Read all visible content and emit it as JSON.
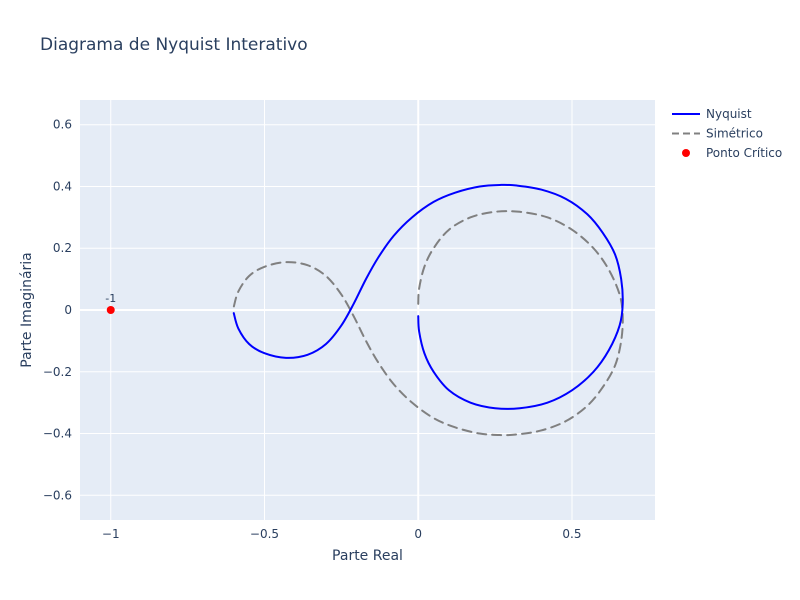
{
  "chart_data": {
    "type": "line",
    "title": "Diagrama de Nyquist Interativo",
    "xlabel": "Parte Real",
    "ylabel": "Parte Imaginária",
    "xlim": [
      -1.1,
      0.77
    ],
    "ylim": [
      -0.68,
      0.68
    ],
    "x_ticks": [
      -1,
      -0.5,
      0,
      0.5
    ],
    "x_tick_labels": [
      "−1",
      "−0.5",
      "0",
      "0.5"
    ],
    "y_ticks": [
      -0.6,
      -0.4,
      -0.2,
      0,
      0.2,
      0.4,
      0.6
    ],
    "y_tick_labels": [
      "−0.6",
      "−0.4",
      "−0.2",
      "0",
      "0.2",
      "0.4",
      "0.6"
    ],
    "grid": true,
    "legend_position": "top-right",
    "series": [
      {
        "name": "Nyquist",
        "style": "solid",
        "color": "#0000ff",
        "points": [
          [
            0.0,
            -0.02
          ],
          [
            0.003,
            -0.07
          ],
          [
            0.02,
            -0.14
          ],
          [
            0.05,
            -0.2
          ],
          [
            0.1,
            -0.26
          ],
          [
            0.17,
            -0.3
          ],
          [
            0.25,
            -0.318
          ],
          [
            0.33,
            -0.318
          ],
          [
            0.42,
            -0.3
          ],
          [
            0.5,
            -0.26
          ],
          [
            0.57,
            -0.2
          ],
          [
            0.62,
            -0.13
          ],
          [
            0.655,
            -0.05
          ],
          [
            0.665,
            0.02
          ],
          [
            0.66,
            0.1
          ],
          [
            0.64,
            0.18
          ],
          [
            0.6,
            0.25
          ],
          [
            0.55,
            0.31
          ],
          [
            0.48,
            0.36
          ],
          [
            0.4,
            0.39
          ],
          [
            0.32,
            0.403
          ],
          [
            0.27,
            0.405
          ],
          [
            0.2,
            0.4
          ],
          [
            0.12,
            0.38
          ],
          [
            0.05,
            0.35
          ],
          [
            -0.02,
            0.3
          ],
          [
            -0.08,
            0.24
          ],
          [
            -0.13,
            0.17
          ],
          [
            -0.17,
            0.1
          ],
          [
            -0.21,
            0.02
          ],
          [
            -0.25,
            -0.05
          ],
          [
            -0.3,
            -0.11
          ],
          [
            -0.36,
            -0.145
          ],
          [
            -0.43,
            -0.155
          ],
          [
            -0.5,
            -0.14
          ],
          [
            -0.55,
            -0.11
          ],
          [
            -0.585,
            -0.06
          ],
          [
            -0.6,
            -0.01
          ]
        ]
      },
      {
        "name": "Simétrico",
        "style": "dash",
        "color": "#808080",
        "points": [
          [
            0.0,
            0.02
          ],
          [
            0.003,
            0.07
          ],
          [
            0.02,
            0.14
          ],
          [
            0.05,
            0.2
          ],
          [
            0.1,
            0.26
          ],
          [
            0.17,
            0.3
          ],
          [
            0.25,
            0.318
          ],
          [
            0.33,
            0.318
          ],
          [
            0.42,
            0.3
          ],
          [
            0.5,
            0.26
          ],
          [
            0.57,
            0.2
          ],
          [
            0.62,
            0.13
          ],
          [
            0.655,
            0.05
          ],
          [
            0.665,
            -0.02
          ],
          [
            0.66,
            -0.1
          ],
          [
            0.64,
            -0.18
          ],
          [
            0.6,
            -0.25
          ],
          [
            0.55,
            -0.31
          ],
          [
            0.48,
            -0.36
          ],
          [
            0.4,
            -0.39
          ],
          [
            0.32,
            -0.403
          ],
          [
            0.27,
            -0.405
          ],
          [
            0.2,
            -0.4
          ],
          [
            0.12,
            -0.38
          ],
          [
            0.05,
            -0.35
          ],
          [
            -0.02,
            -0.3
          ],
          [
            -0.08,
            -0.24
          ],
          [
            -0.13,
            -0.17
          ],
          [
            -0.17,
            -0.1
          ],
          [
            -0.21,
            -0.02
          ],
          [
            -0.25,
            0.05
          ],
          [
            -0.3,
            0.11
          ],
          [
            -0.36,
            0.145
          ],
          [
            -0.43,
            0.155
          ],
          [
            -0.5,
            0.14
          ],
          [
            -0.55,
            0.11
          ],
          [
            -0.585,
            0.06
          ],
          [
            -0.6,
            0.01
          ]
        ]
      },
      {
        "name": "Ponto Crítico",
        "style": "marker",
        "color": "#ff0000",
        "points": [
          [
            -1,
            0
          ]
        ]
      }
    ],
    "annotations": [
      {
        "x": -1,
        "y": 0,
        "text": "-1"
      }
    ]
  }
}
